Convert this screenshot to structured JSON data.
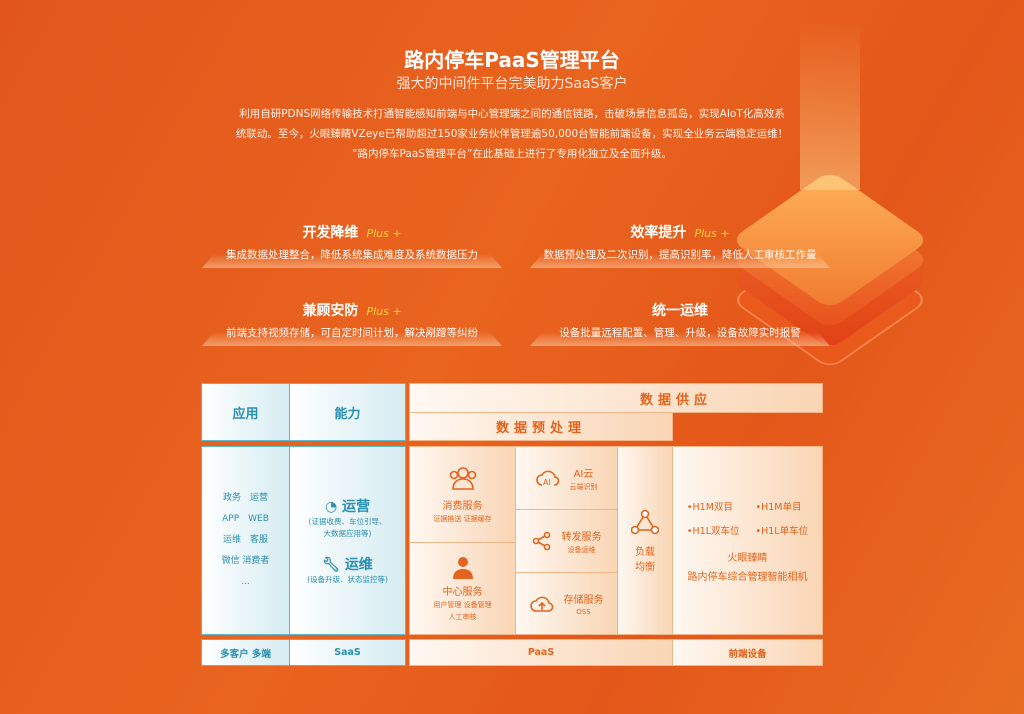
{
  "header": {
    "title": "路内停车PaaS管理平台",
    "subtitle": "强大的中间件平台完美助力SaaS客户",
    "paragraph": [
      "利用自研PDNS网络传输技术打通智能感知前端与中心管理端之间的通信链路，击破场景信息孤岛，实现AIoT化高效系",
      "统联动。至今，火眼臻睛VZeye已帮助超过150家业务伙伴管理逾50,000台智能前端设备，实现全业务云端稳定运维！",
      "“路内停车PaaS管理平台”在此基础上进行了专用化独立及全面升级。"
    ]
  },
  "features": [
    {
      "title": "开发降维",
      "plus": "Plus +",
      "desc": "集成数据处理整合，降低系统集成难度及系统数据压力"
    },
    {
      "title": "效率提升",
      "plus": "Plus +",
      "desc": "数据预处理及二次识别，提高识别率，降低人工审核工作量"
    },
    {
      "title": "兼顾安防",
      "plus": "Plus +",
      "desc": "前端支持视频存储，可自定时间计划，解决剐蹭等纠纷"
    },
    {
      "title": "统一运维",
      "plus": "",
      "desc": "设备批量远程配置、管理、升级，设备故障实时报警"
    }
  ],
  "diagram": {
    "app_header": "应用",
    "cap_header": "能力",
    "supply_header": "数据供应",
    "preprocess_header": "数据预处理",
    "apps": [
      "政务　运营",
      "APP　WEB",
      "运维　客服",
      "微信 消费者",
      "..."
    ],
    "capabilities": [
      {
        "title": "运营",
        "desc1": "(证据收费、车位引导、",
        "desc2": "大数据应用等)",
        "icon": "pie-chart-icon"
      },
      {
        "title": "运维",
        "desc1": "(设备升级、状态监控等)",
        "desc2": "",
        "icon": "wrench-icon"
      }
    ],
    "services": {
      "consume": {
        "title": "消费服务",
        "desc": "证据推送 证据缓存",
        "icon": "users-icon"
      },
      "center": {
        "title": "中心服务",
        "desc1": "用户管理 设备管理",
        "desc2": "人工审核",
        "icon": "person-icon"
      },
      "ai": {
        "title": "AI云",
        "desc": "云端识别",
        "icon": "ai-cloud-icon"
      },
      "forward": {
        "title": "转发服务",
        "desc": "设备运维",
        "icon": "share-icon"
      },
      "storage": {
        "title": "存储服务",
        "desc": "OSS",
        "icon": "cloud-upload-icon"
      },
      "balance": {
        "title1": "负载",
        "title2": "均衡",
        "icon": "triangle-nodes-icon"
      }
    },
    "devices": {
      "items": [
        "H1M双目",
        "H1M单目",
        "H1L双车位",
        "H1L单车位"
      ],
      "name1": "火眼臻睛",
      "name2": "路内停车综合管理智能相机"
    },
    "footer": {
      "clients": "多客户 多端",
      "saas": "SaaS",
      "paas": "PaaS",
      "front": "前端设备"
    }
  },
  "colors": {
    "background": "#e8631f",
    "blue": "#2a8fb0",
    "orange": "#e2641e",
    "plus": "#ffd23c"
  }
}
